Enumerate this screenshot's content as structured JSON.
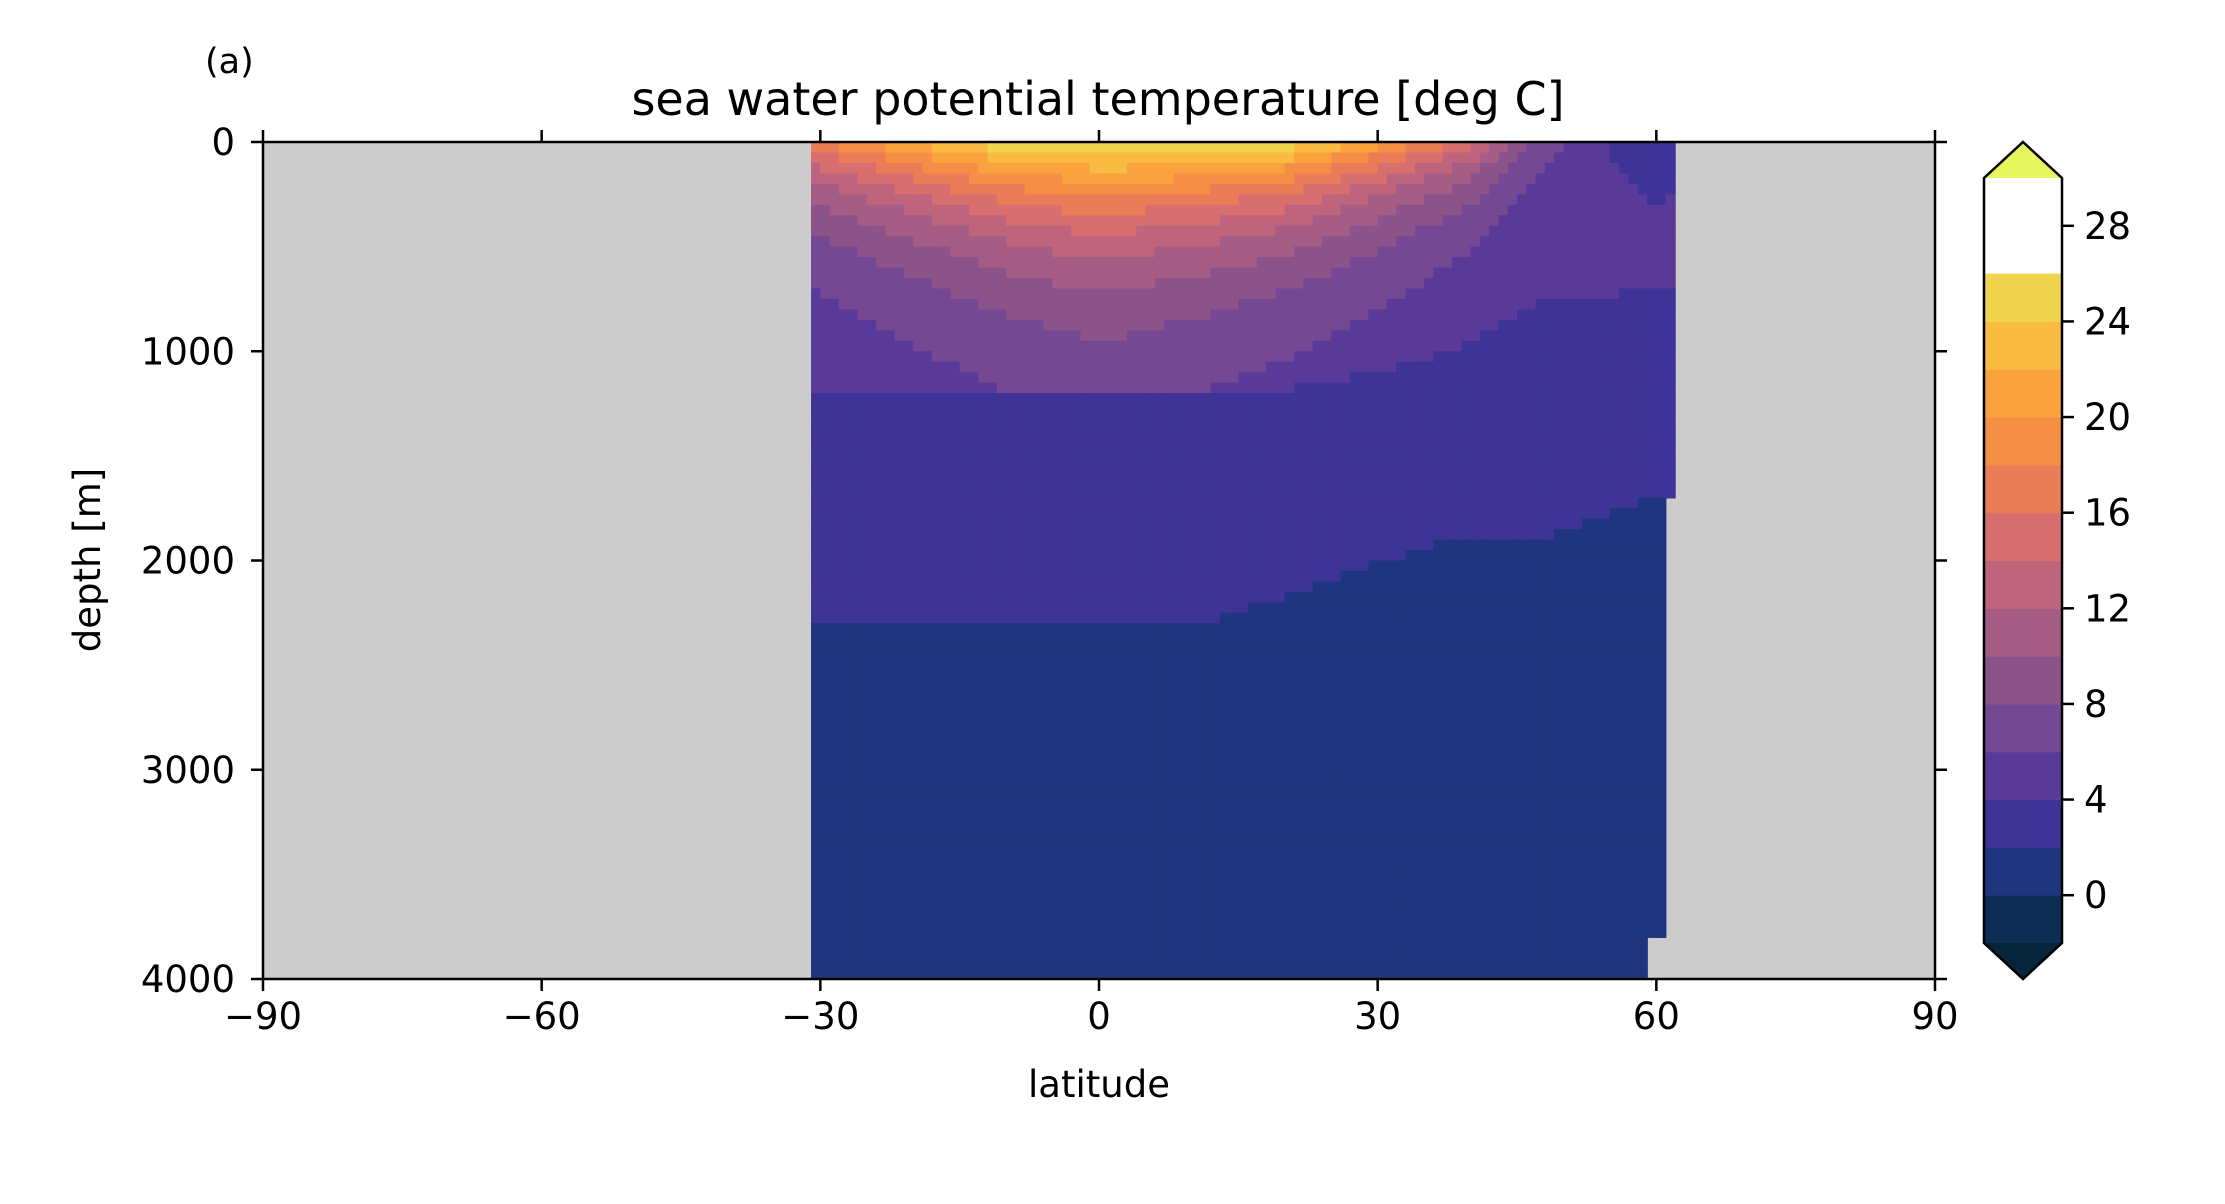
{
  "panel_label": "(a)",
  "chart_data": {
    "type": "heatmap",
    "title": "sea water potential temperature [deg C]",
    "xlabel": "latitude",
    "ylabel": "depth [m]",
    "xlim": [
      -90,
      90
    ],
    "ylim": [
      4000,
      0
    ],
    "y_inverted": true,
    "xticks": [
      -90,
      -60,
      -30,
      0,
      30,
      60,
      90
    ],
    "xtick_labels": [
      "−90",
      "−60",
      "−30",
      "0",
      "30",
      "60",
      "90"
    ],
    "yticks": [
      0,
      1000,
      2000,
      3000,
      4000
    ],
    "ytick_labels": [
      "0",
      "1000",
      "2000",
      "3000",
      "4000"
    ],
    "missing_color": "#cccccc",
    "data_extent_lat": [
      -31,
      62
    ],
    "colorbar": {
      "levels": [
        -4,
        -2,
        0,
        2,
        4,
        6,
        8,
        10,
        12,
        14,
        16,
        18,
        20,
        22,
        24,
        26,
        28,
        30,
        32
      ],
      "colors": [
        "#06243a",
        "#0b2d56",
        "#1f357f",
        "#3e3397",
        "#5a3a98",
        "#744892",
        "#8c538b",
        "#a55c85",
        "#bf647d",
        "#d76f6f",
        "#ea7c58",
        "#f58f46",
        "#faa23d",
        "#f9bb42",
        "#f0d44d",
        "#e6f65f"
      ],
      "extend": "both",
      "ticks": [
        0,
        4,
        8,
        12,
        16,
        20,
        24,
        28
      ],
      "tick_labels": [
        "0",
        "4",
        "8",
        "12",
        "16",
        "20",
        "24",
        "28"
      ]
    },
    "surface_temperature_profile": {
      "lat": [
        -30,
        -20,
        -10,
        0,
        10,
        20,
        30,
        40,
        45,
        50,
        55,
        60
      ],
      "temperature_deg_c": [
        18,
        22.5,
        26,
        27,
        27,
        26,
        21,
        15,
        9,
        6,
        4,
        2
      ]
    },
    "deep_isotherms": [
      {
        "temperature_deg_c": 2,
        "lat": [
          -30,
          13,
          27,
          38,
          42,
          48,
          60
        ],
        "depth": [
          2280,
          2280,
          2060,
          1900,
          1900,
          1900,
          1700
        ]
      },
      {
        "temperature_deg_c": 4,
        "lat": [
          -30,
          18,
          30,
          38,
          48,
          62
        ],
        "depth": [
          1220,
          1200,
          1100,
          1000,
          760,
          700
        ]
      }
    ]
  }
}
